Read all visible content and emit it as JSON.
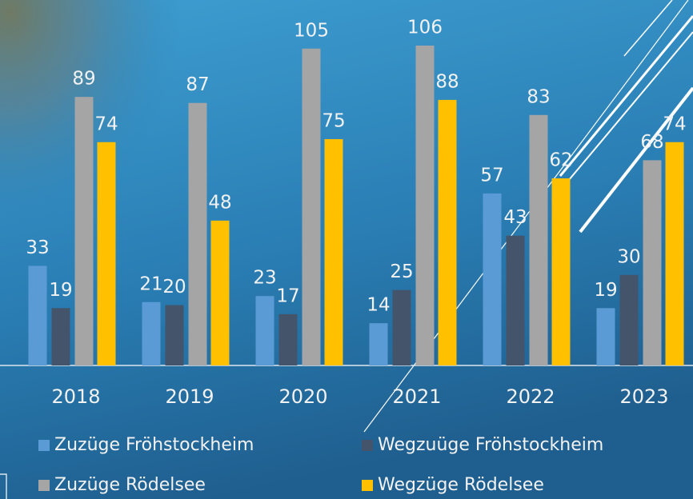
{
  "chart_data": {
    "type": "bar",
    "categories": [
      "2018",
      "2019",
      "2020",
      "2021",
      "2022",
      "2023"
    ],
    "series": [
      {
        "name": "Zuzüge Fröhstockheim",
        "color": "#5b9bd5",
        "values": [
          33,
          21,
          23,
          14,
          57,
          19
        ]
      },
      {
        "name": "Wegzuüge Fröhstockheim",
        "color": "#44546a",
        "values": [
          19,
          20,
          17,
          25,
          43,
          30
        ]
      },
      {
        "name": "Zuzüge Rödelsee",
        "color": "#a5a5a5",
        "values": [
          89,
          87,
          105,
          106,
          83,
          68
        ]
      },
      {
        "name": "Wegzüge Rödelsee",
        "color": "#ffc000",
        "values": [
          74,
          48,
          75,
          88,
          62,
          74
        ]
      }
    ]
  }
}
